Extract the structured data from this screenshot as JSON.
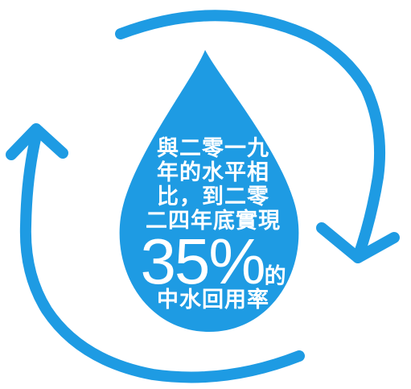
{
  "caption": {
    "line1": "與二零一九",
    "line2": "年的水平相",
    "line3": "比，到二零",
    "line4": "二四年底實現",
    "percent": "35%",
    "percent_suffix": "的",
    "line6": "中水回用率"
  },
  "colors": {
    "drop": "#1e9be3",
    "arrows": "#1e9be3",
    "text": "#ffffff",
    "background": "#ffffff"
  },
  "icons": {
    "drop": "water-drop-icon",
    "cycle": "recycle-arrows-icon"
  }
}
